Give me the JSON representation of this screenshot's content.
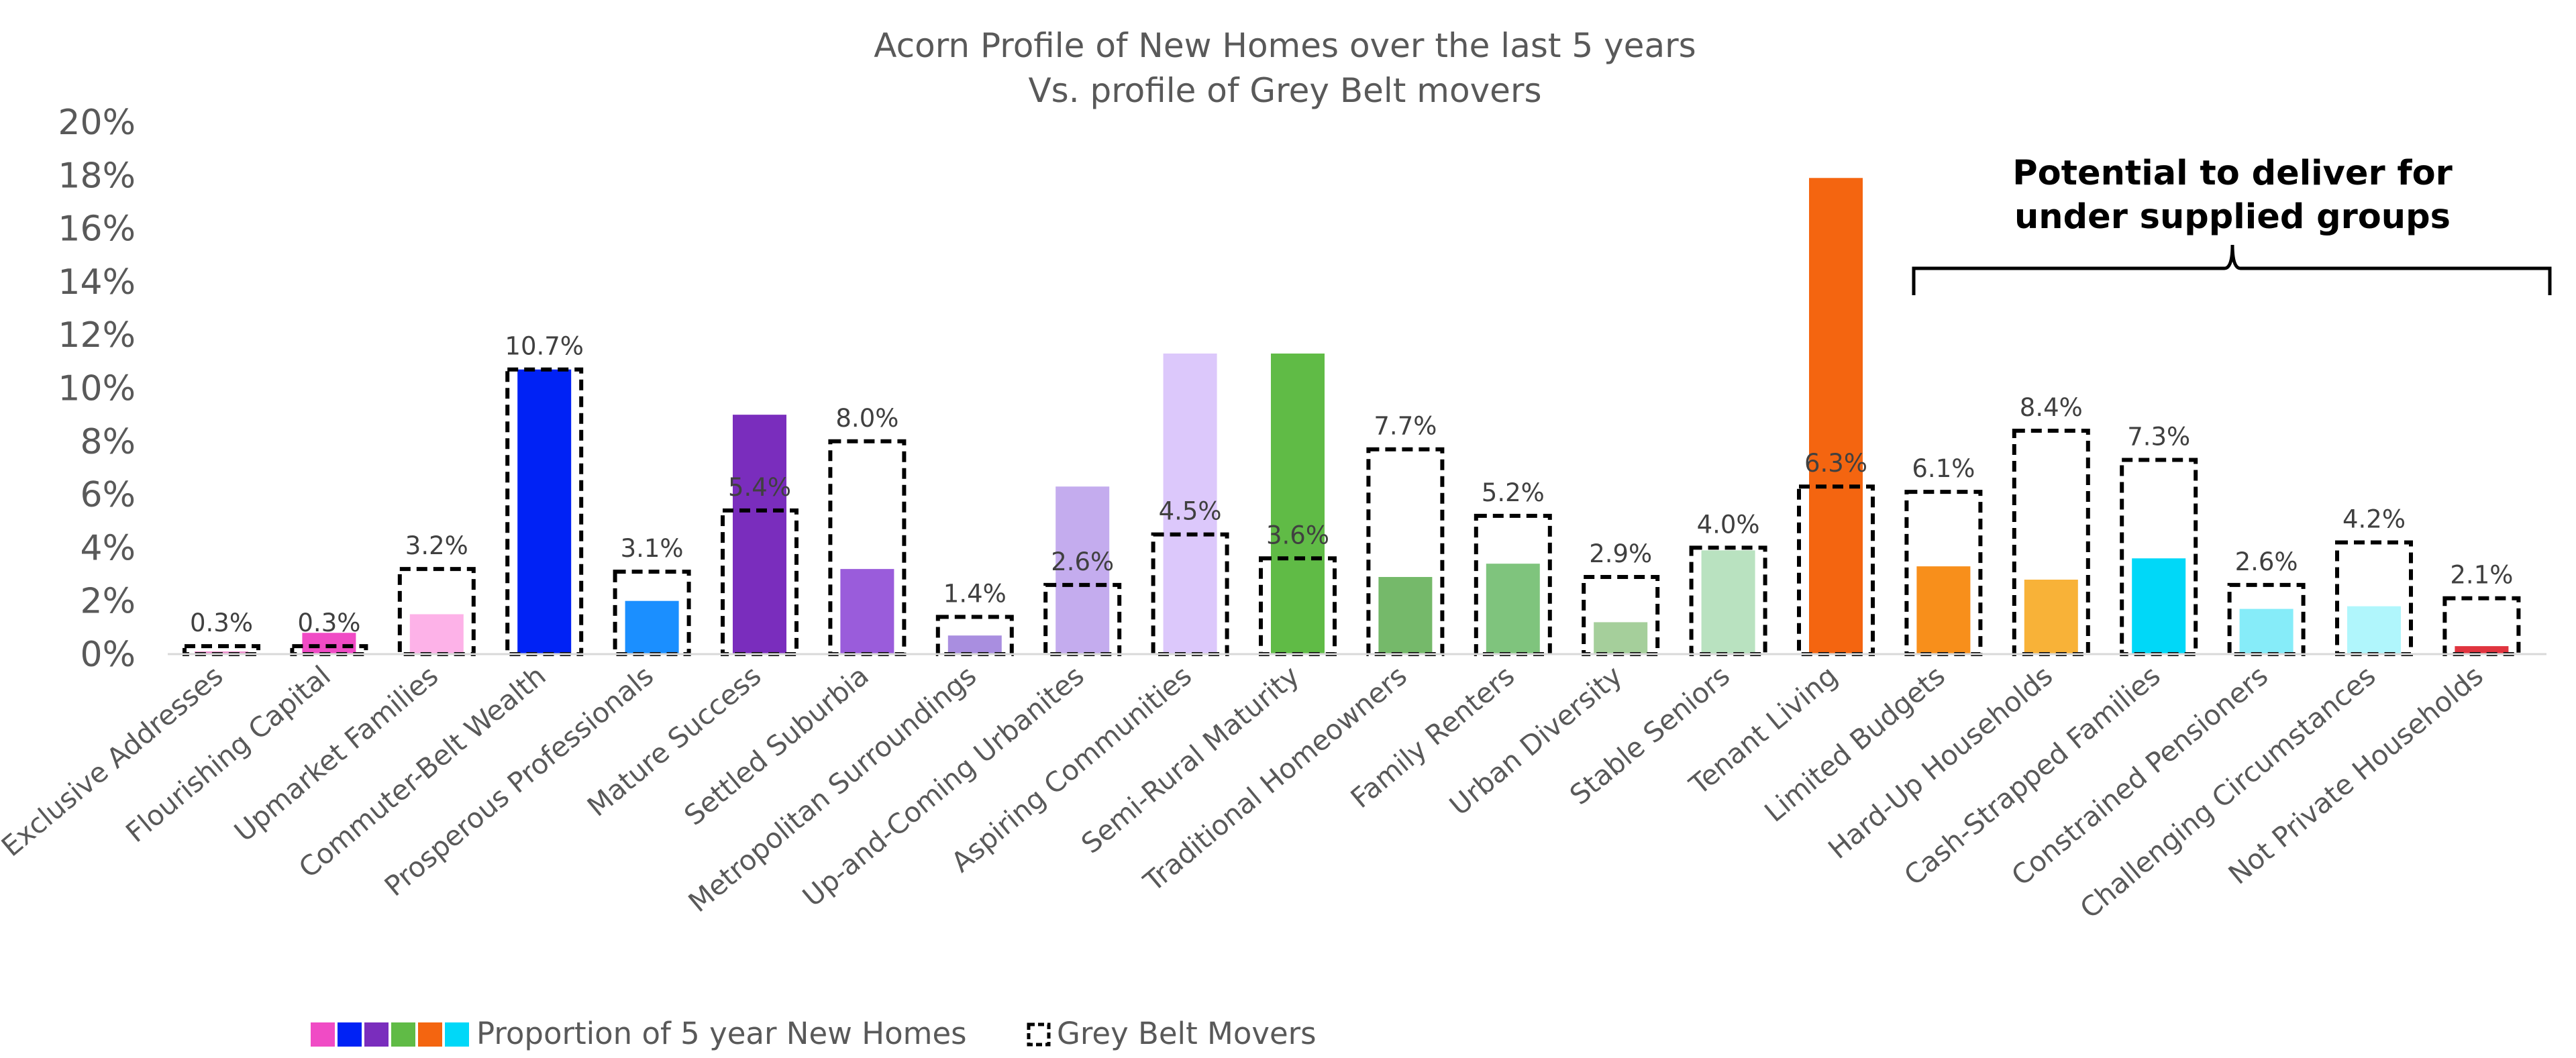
{
  "chart_data": {
    "type": "bar",
    "title": "Acorn Profile of New Homes over the last 5 years",
    "subtitle": "Vs. profile of Grey Belt movers",
    "xlabel": "",
    "ylabel": "",
    "ylim": [
      0,
      20
    ],
    "y_ticks": [
      "0%",
      "2%",
      "4%",
      "6%",
      "8%",
      "10%",
      "12%",
      "14%",
      "16%",
      "18%",
      "20%"
    ],
    "grid": false,
    "legend_position": "bottom-left",
    "categories": [
      "Exclusive Addresses",
      "Flourishing Capital",
      "Upmarket Families",
      "Commuter-Belt Wealth",
      "Prosperous Professionals",
      "Mature Success",
      "Settled Suburbia",
      "Metropolitan Surroundings",
      "Up-and-Coming Urbanites",
      "Aspiring Communities",
      "Semi-Rural Maturity",
      "Traditional Homeowners",
      "Family Renters",
      "Urban Diversity",
      "Stable Seniors",
      "Tenant Living",
      "Limited Budgets",
      "Hard-Up Households",
      "Cash-Strapped Families",
      "Constrained Pensioners",
      "Challenging Circumstances",
      "Not Private Households"
    ],
    "series": [
      {
        "name": "Proportion of 5 year New Homes",
        "style": "filled",
        "values": [
          0.1,
          0.8,
          1.5,
          10.7,
          2.0,
          9.0,
          3.2,
          0.7,
          6.3,
          11.3,
          11.3,
          2.9,
          3.4,
          1.2,
          3.9,
          17.9,
          3.3,
          2.8,
          3.6,
          1.7,
          1.8,
          0.3
        ],
        "colors": [
          "#f08fcf",
          "#f04bc5",
          "#fdb2e8",
          "#0022f5",
          "#1b8fff",
          "#7a2dbd",
          "#9a5cdb",
          "#a98ee0",
          "#c4acee",
          "#dcc8fb",
          "#60bb46",
          "#75b96a",
          "#7fc47d",
          "#a5cf9b",
          "#b9e2c0",
          "#f46510",
          "#f88f1b",
          "#f8b238",
          "#00d8f8",
          "#86ecf9",
          "#b0f6fc",
          "#e0343f"
        ]
      },
      {
        "name": "Grey Belt Movers",
        "style": "dashed-outline",
        "values": [
          0.3,
          0.3,
          3.2,
          10.7,
          3.1,
          5.4,
          8.0,
          1.4,
          2.6,
          4.5,
          3.6,
          7.7,
          5.2,
          2.9,
          4.0,
          6.3,
          6.1,
          8.4,
          7.3,
          2.6,
          4.2,
          2.1
        ],
        "labels": [
          "0.3%",
          "0.3%",
          "3.2%",
          "10.7%",
          "3.1%",
          "5.4%",
          "8.0%",
          "1.4%",
          "2.6%",
          "4.5%",
          "3.6%",
          "7.7%",
          "5.2%",
          "2.9%",
          "4.0%",
          "6.3%",
          "6.1%",
          "8.4%",
          "7.3%",
          "2.6%",
          "4.2%",
          "2.1%"
        ]
      }
    ],
    "annotation": {
      "line1": "Potential to deliver for",
      "line2": "under supplied groups",
      "bracket_from": "Limited Budgets",
      "bracket_to": "Not Private Households"
    },
    "legend": {
      "filled_label": "Proportion of 5 year New Homes",
      "filled_swatch_colors": [
        "#f04bc5",
        "#0022f5",
        "#7a2dbd",
        "#60bb46",
        "#f46510",
        "#00d8f8"
      ],
      "outline_label": "Grey Belt Movers"
    }
  }
}
